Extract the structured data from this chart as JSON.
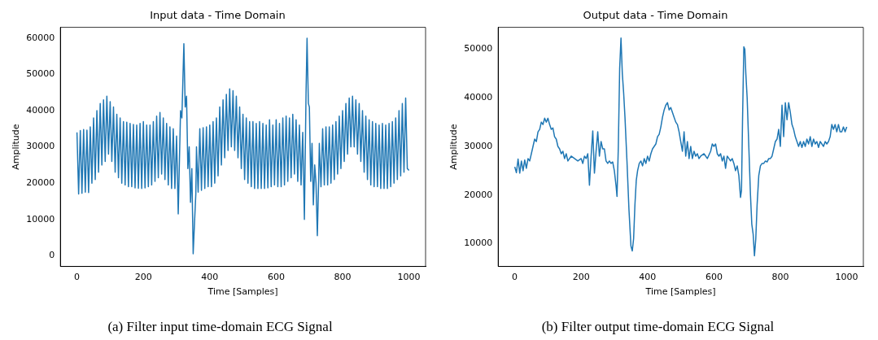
{
  "chart_data": [
    {
      "type": "line",
      "title": "Input data - Time Domain",
      "xlabel": "Time [Samples]",
      "ylabel": "Amplitude",
      "color": "#1f77b4",
      "x": [
        0,
        5,
        10,
        15,
        20,
        25,
        30,
        35,
        40,
        45,
        50,
        55,
        60,
        65,
        70,
        75,
        80,
        85,
        90,
        95,
        100,
        105,
        110,
        115,
        120,
        125,
        130,
        135,
        140,
        145,
        150,
        155,
        160,
        165,
        170,
        175,
        180,
        185,
        190,
        195,
        200,
        205,
        210,
        215,
        220,
        225,
        230,
        235,
        240,
        245,
        250,
        255,
        260,
        265,
        270,
        275,
        280,
        285,
        290,
        295,
        300,
        305,
        312,
        316,
        322,
        326,
        330,
        334,
        338,
        342,
        346,
        350,
        354,
        358,
        360,
        365,
        370,
        375,
        380,
        385,
        390,
        395,
        400,
        405,
        410,
        415,
        420,
        425,
        430,
        435,
        440,
        445,
        450,
        455,
        460,
        465,
        470,
        475,
        480,
        485,
        490,
        495,
        500,
        505,
        510,
        515,
        520,
        525,
        530,
        535,
        540,
        545,
        550,
        555,
        560,
        565,
        570,
        575,
        580,
        585,
        590,
        595,
        600,
        605,
        610,
        615,
        620,
        625,
        630,
        635,
        640,
        645,
        650,
        655,
        660,
        665,
        670,
        675,
        680,
        685,
        690,
        693,
        697,
        700,
        704,
        708,
        712,
        716,
        720,
        724,
        728,
        730,
        735,
        740,
        745,
        750,
        755,
        760,
        765,
        770,
        775,
        780,
        785,
        790,
        795,
        800,
        805,
        810,
        815,
        820,
        825,
        830,
        835,
        840,
        845,
        850,
        855,
        860,
        865,
        870,
        875,
        880,
        885,
        890,
        895,
        900,
        905,
        910,
        915,
        920,
        925,
        930,
        935,
        940,
        945,
        950,
        955,
        960,
        965,
        970,
        975,
        980,
        985,
        990,
        995,
        1000
      ],
      "values": [
        34000,
        17000,
        34500,
        17200,
        34800,
        17500,
        34600,
        17400,
        35500,
        20000,
        38000,
        21000,
        40000,
        23000,
        42000,
        25000,
        43000,
        26000,
        44000,
        28000,
        42500,
        26000,
        41000,
        23000,
        39000,
        21500,
        38000,
        20000,
        37000,
        19500,
        36800,
        19000,
        36500,
        19000,
        36200,
        18700,
        36000,
        18600,
        36500,
        18500,
        37000,
        18700,
        36000,
        19000,
        36000,
        19500,
        37000,
        20500,
        38500,
        21500,
        39500,
        22500,
        38000,
        21000,
        36500,
        19500,
        35500,
        18500,
        35000,
        18500,
        33000,
        11500,
        40000,
        38000,
        58500,
        41000,
        44000,
        24000,
        30000,
        14700,
        24000,
        500,
        9000,
        17000,
        30000,
        17500,
        35000,
        18000,
        35300,
        18500,
        35500,
        19000,
        36000,
        19000,
        37000,
        20000,
        38000,
        22000,
        41000,
        25000,
        43000,
        27000,
        44500,
        29000,
        46000,
        30000,
        45500,
        29000,
        44000,
        27000,
        41000,
        24000,
        39000,
        21000,
        38000,
        20000,
        37000,
        19000,
        37000,
        18500,
        36500,
        18500,
        37000,
        18500,
        36500,
        18500,
        36000,
        18700,
        37500,
        19000,
        36000,
        19500,
        37500,
        19000,
        36500,
        19000,
        38000,
        19500,
        38500,
        20500,
        38000,
        21500,
        39000,
        22500,
        37500,
        20500,
        36000,
        19500,
        34000,
        10000,
        45000,
        60000,
        42000,
        41000,
        20500,
        31000,
        14000,
        25000,
        20000,
        5500,
        21000,
        31000,
        19000,
        35000,
        19500,
        35500,
        19500,
        35500,
        20000,
        36000,
        21000,
        37000,
        22500,
        38500,
        24000,
        40000,
        26000,
        42000,
        28000,
        43500,
        30000,
        44000,
        30000,
        43000,
        28000,
        42000,
        26000,
        40000,
        23000,
        38500,
        21000,
        37500,
        19500,
        37000,
        19000,
        36500,
        19000,
        36000,
        18500,
        36500,
        18500,
        36000,
        18500,
        36500,
        19000,
        37000,
        20000,
        38000,
        21000,
        40000,
        22000,
        42000,
        23000,
        43500,
        24000,
        23500
      ],
      "xlim": [
        -50,
        1050
      ],
      "ylim": [
        -3000,
        63000
      ],
      "xticks": [
        0,
        200,
        400,
        600,
        800,
        1000
      ],
      "yticks": [
        0,
        10000,
        20000,
        30000,
        40000,
        50000,
        60000
      ],
      "annotations": [
        "(a) Filter input time-domain ECG Signal"
      ]
    },
    {
      "type": "line",
      "title": "Output data - Time Domain",
      "xlabel": "Time [Samples]",
      "ylabel": "Amplitude",
      "color": "#1f77b4",
      "x": [
        0,
        5,
        10,
        15,
        20,
        25,
        30,
        35,
        40,
        45,
        50,
        55,
        60,
        65,
        70,
        75,
        80,
        85,
        90,
        95,
        100,
        105,
        110,
        115,
        120,
        125,
        130,
        135,
        140,
        145,
        150,
        155,
        160,
        170,
        180,
        190,
        200,
        205,
        210,
        215,
        220,
        225,
        230,
        235,
        240,
        245,
        250,
        255,
        260,
        265,
        270,
        275,
        280,
        285,
        290,
        295,
        300,
        305,
        308,
        312,
        316,
        320,
        324,
        328,
        332,
        338,
        344,
        350,
        354,
        358,
        362,
        366,
        370,
        375,
        380,
        385,
        390,
        395,
        400,
        405,
        410,
        415,
        420,
        425,
        430,
        435,
        440,
        445,
        450,
        455,
        460,
        465,
        470,
        475,
        480,
        485,
        490,
        495,
        500,
        505,
        510,
        515,
        520,
        525,
        530,
        535,
        540,
        545,
        550,
        555,
        560,
        570,
        580,
        590,
        595,
        600,
        605,
        610,
        615,
        620,
        625,
        630,
        635,
        640,
        645,
        650,
        655,
        660,
        665,
        670,
        675,
        680,
        683,
        686,
        690,
        693,
        696,
        700,
        705,
        710,
        714,
        718,
        722,
        726,
        730,
        735,
        740,
        745,
        750,
        755,
        760,
        765,
        770,
        775,
        780,
        785,
        790,
        795,
        800,
        805,
        810,
        815,
        820,
        825,
        830,
        835,
        840,
        845,
        850,
        855,
        860,
        865,
        870,
        875,
        880,
        885,
        890,
        895,
        900,
        905,
        910,
        915,
        920,
        925,
        930,
        935,
        940,
        945,
        950,
        955,
        960,
        965,
        970,
        975,
        980,
        985,
        990,
        995,
        1000
      ],
      "values": [
        25800,
        24600,
        27400,
        24500,
        27000,
        25000,
        27200,
        25500,
        27500,
        27000,
        28500,
        30000,
        31500,
        31000,
        33000,
        33500,
        35000,
        34500,
        35800,
        35000,
        35800,
        34500,
        33500,
        33800,
        32000,
        31500,
        30000,
        29500,
        28500,
        29000,
        27500,
        28500,
        27000,
        28000,
        27500,
        27000,
        27500,
        26500,
        28000,
        27500,
        28500,
        22000,
        28000,
        33200,
        24500,
        29000,
        33000,
        28000,
        31000,
        29500,
        29500,
        27000,
        26500,
        27000,
        26500,
        26800,
        25000,
        22000,
        19700,
        30000,
        46000,
        52300,
        45000,
        41000,
        36000,
        27000,
        17000,
        9500,
        8500,
        11000,
        18000,
        23000,
        25000,
        26500,
        27000,
        26000,
        27500,
        26500,
        28000,
        27000,
        28500,
        29500,
        30000,
        30500,
        32000,
        32500,
        34000,
        36000,
        37500,
        38500,
        39000,
        37500,
        38000,
        37000,
        36000,
        35000,
        34500,
        33000,
        31000,
        29000,
        33000,
        28000,
        31000,
        27500,
        30000,
        27500,
        29000,
        28000,
        28500,
        27500,
        28000,
        28500,
        27500,
        29000,
        30500,
        30000,
        30500,
        28500,
        28000,
        28500,
        27000,
        28000,
        25500,
        28000,
        27500,
        27000,
        27500,
        26500,
        25000,
        26000,
        24000,
        19500,
        21000,
        35000,
        50500,
        50000,
        45000,
        40000,
        30000,
        20000,
        14000,
        12000,
        7500,
        11000,
        18000,
        24000,
        26000,
        26500,
        26500,
        27000,
        26800,
        27500,
        27500,
        28000,
        29500,
        31000,
        31500,
        33500,
        30000,
        38500,
        32000,
        39000,
        35500,
        39000,
        37000,
        34500,
        33500,
        32000,
        31000,
        30000,
        31000,
        29800,
        31000,
        30000,
        31500,
        30500,
        32000,
        30000,
        31500,
        30500,
        31000,
        29800,
        31000,
        30500,
        30000,
        31000,
        30500,
        31000,
        32000,
        34500,
        33500,
        34500,
        33000,
        34500,
        33000,
        33000,
        34000,
        33000,
        34000
      ],
      "xlim": [
        -50,
        1050
      ],
      "ylim": [
        5300,
        54500
      ],
      "xticks": [
        0,
        200,
        400,
        600,
        800,
        1000
      ],
      "yticks": [
        10000,
        20000,
        30000,
        40000,
        50000
      ],
      "annotations": [
        "(b) Filter output time-domain ECG Signal"
      ]
    }
  ]
}
